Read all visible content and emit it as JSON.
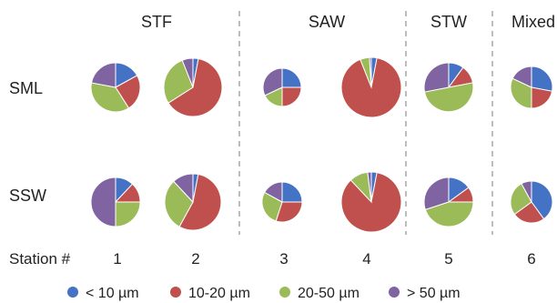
{
  "chart_data": {
    "type": "pie",
    "groups": [
      "STF",
      "SAW",
      "STW",
      "Mixed"
    ],
    "rows": [
      "SML",
      "SSW"
    ],
    "station_label": "Station #",
    "stations": [
      "1",
      "2",
      "3",
      "4",
      "5",
      "6"
    ],
    "legend": [
      {
        "label": "< 10 µm",
        "color": "#4472c4"
      },
      {
        "label": "10-20 µm",
        "color": "#c0504d"
      },
      {
        "label": "20-50 µm",
        "color": "#9bbb59"
      },
      {
        "label": "> 50 µm",
        "color": "#8064a2"
      }
    ],
    "pies": [
      {
        "row": "SML",
        "station": "1",
        "values": [
          17,
          24,
          37,
          22
        ]
      },
      {
        "row": "SML",
        "station": "2",
        "values": [
          3,
          63,
          28,
          6
        ]
      },
      {
        "row": "SML",
        "station": "3",
        "values": [
          25,
          25,
          18,
          32
        ]
      },
      {
        "row": "SML",
        "station": "4",
        "values": [
          3,
          91,
          5,
          1
        ]
      },
      {
        "row": "SML",
        "station": "5",
        "values": [
          10,
          12,
          50,
          28
        ]
      },
      {
        "row": "SML",
        "station": "6",
        "values": [
          28,
          22,
          32,
          18
        ]
      },
      {
        "row": "SSW",
        "station": "1",
        "values": [
          12,
          13,
          25,
          50
        ]
      },
      {
        "row": "SSW",
        "station": "2",
        "values": [
          3,
          55,
          30,
          12
        ]
      },
      {
        "row": "SSW",
        "station": "3",
        "values": [
          25,
          30,
          28,
          17
        ]
      },
      {
        "row": "SSW",
        "station": "4",
        "values": [
          3,
          85,
          10,
          2
        ]
      },
      {
        "row": "SSW",
        "station": "5",
        "values": [
          15,
          10,
          45,
          30
        ]
      },
      {
        "row": "SSW",
        "station": "6",
        "values": [
          40,
          25,
          27,
          8
        ]
      }
    ]
  }
}
